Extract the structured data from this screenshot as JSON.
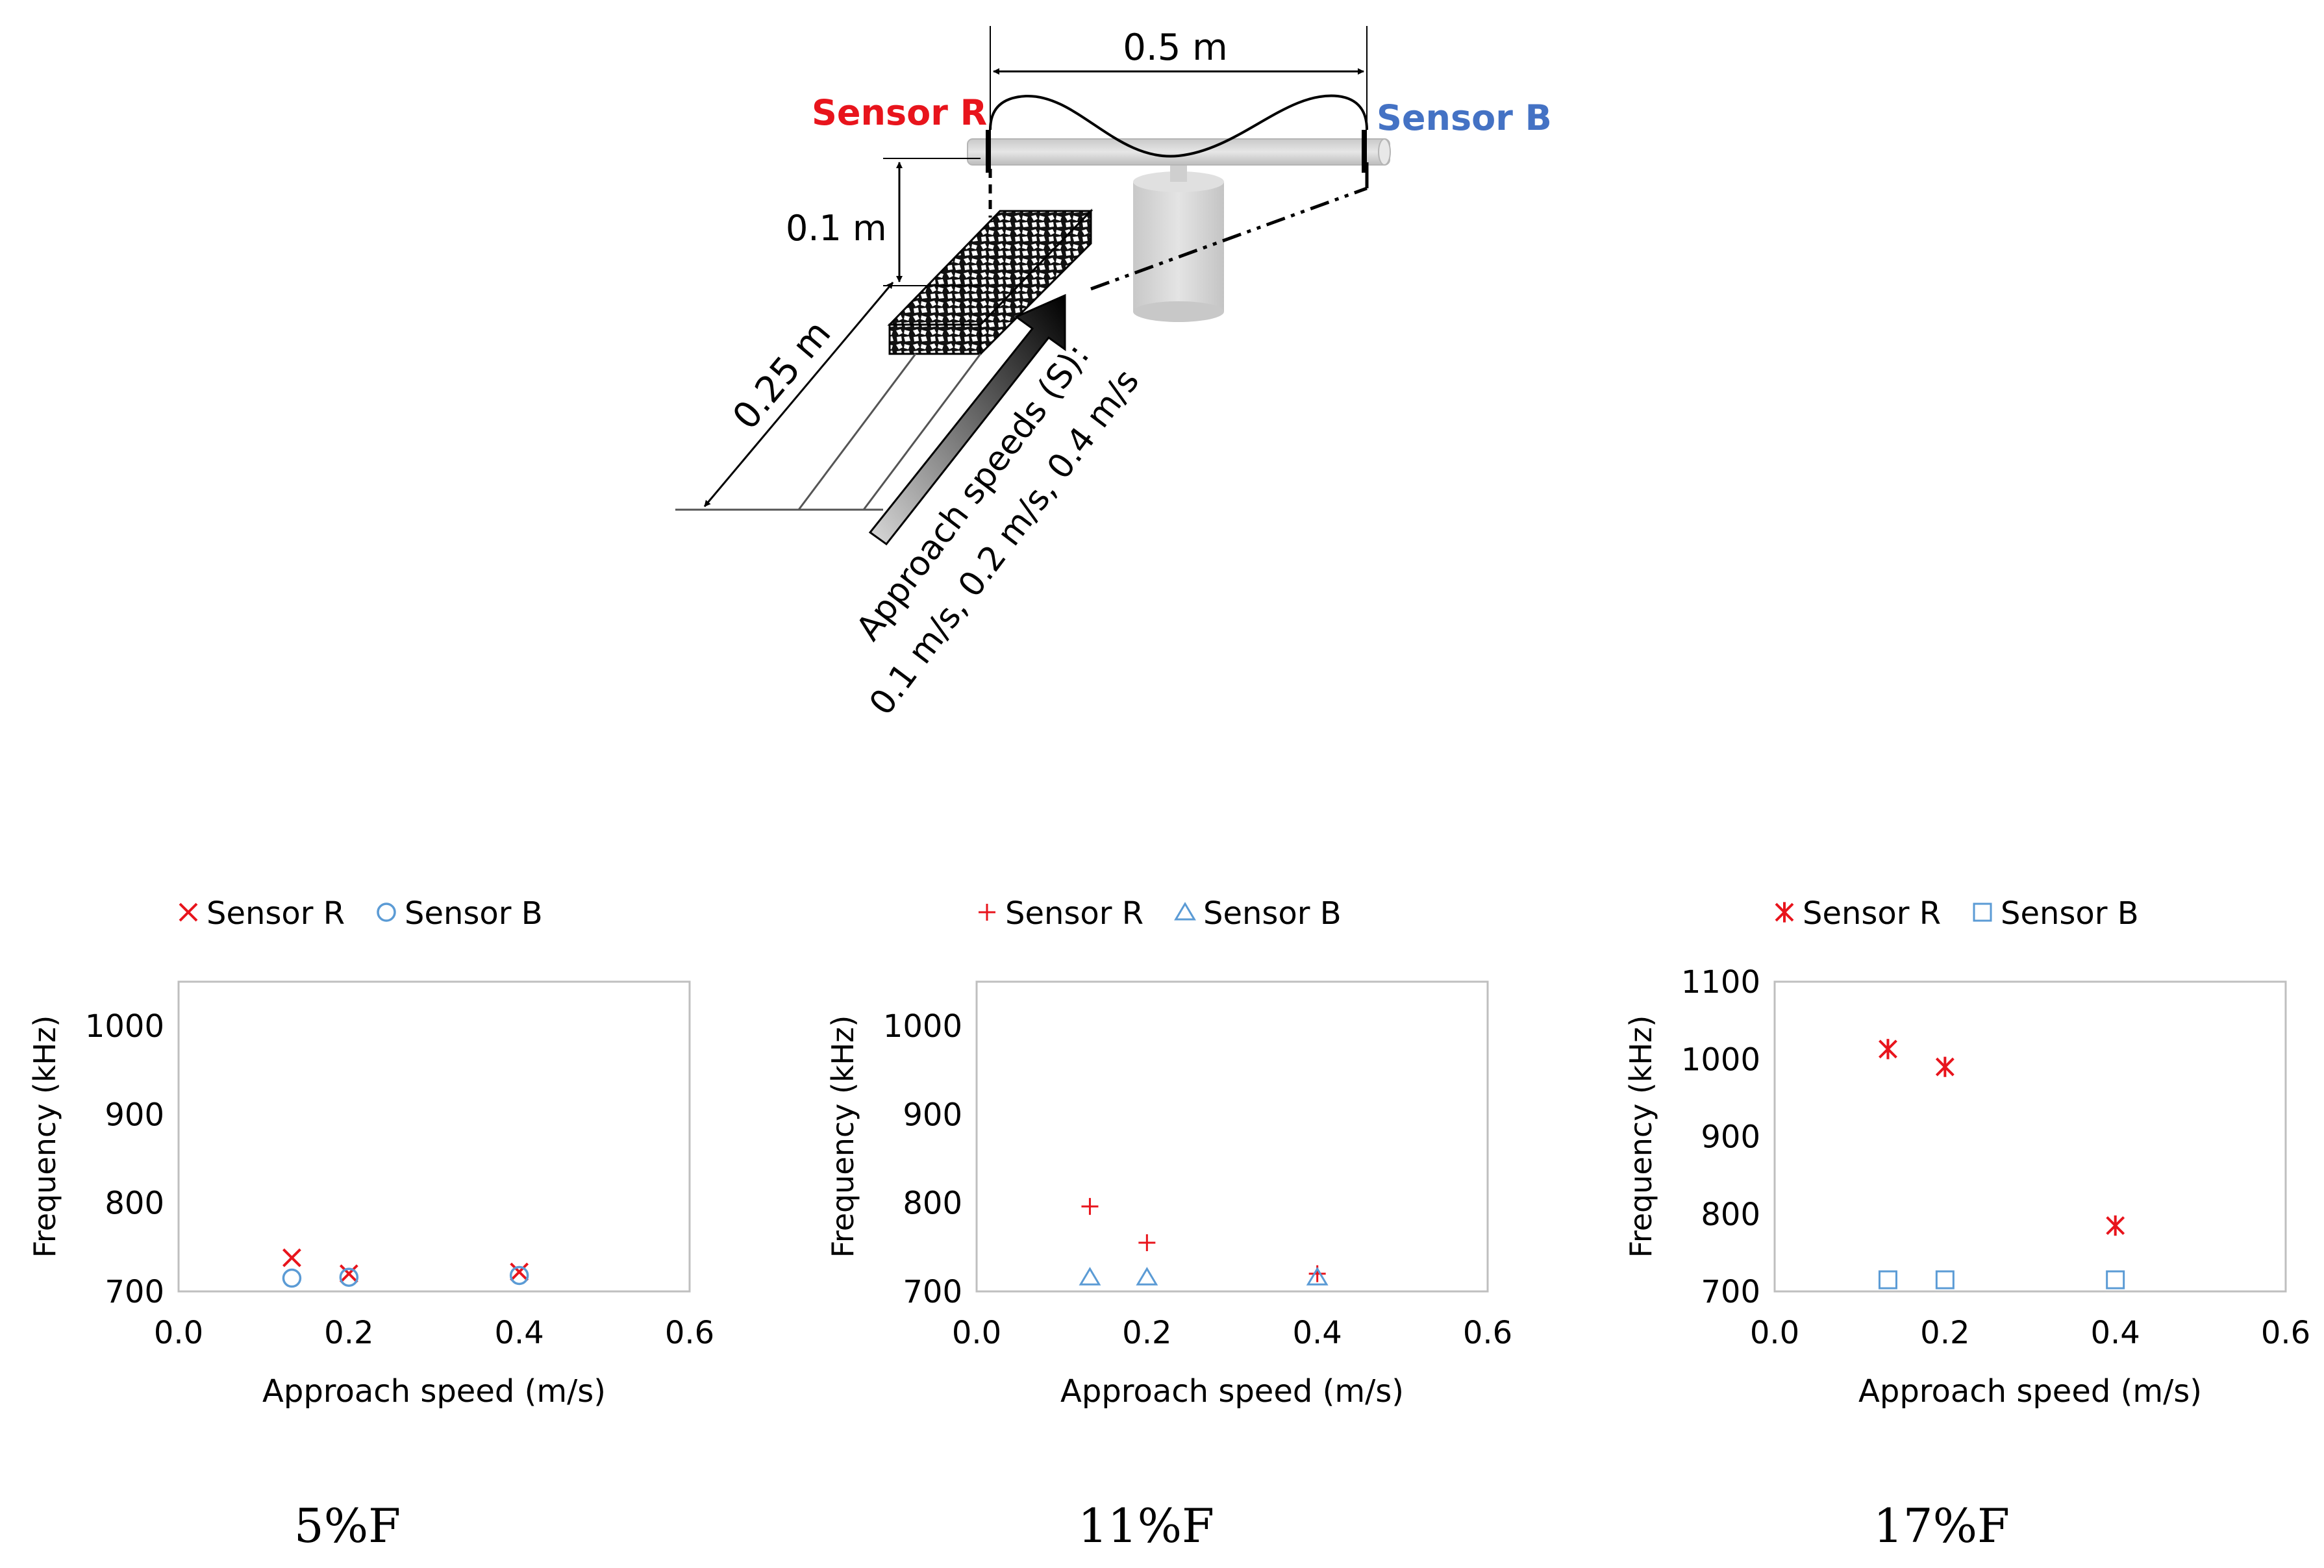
{
  "diagram": {
    "sensor_r_label": "Sensor R",
    "sensor_b_label": "Sensor B",
    "span_label": "0.5 m",
    "height_label": "0.1 m",
    "length_label": "0.25 m",
    "speeds_line1": "Approach speeds (S):",
    "speeds_line2": "0.1 m/s, 0.2 m/s, 0.4 m/s",
    "colors": {
      "sensor_r": "#e8141c",
      "sensor_b": "#4472c4",
      "cylinder": "#d9d9d9"
    }
  },
  "chart_data": [
    {
      "type": "scatter",
      "caption": "5%F",
      "xlabel": "Approach speed (m/s)",
      "ylabel": "Frequency (kHz)",
      "xlim": [
        0,
        0.6
      ],
      "ylim": [
        700,
        1050
      ],
      "xticks": [
        "0.0",
        "0.2",
        "0.4",
        "0.6"
      ],
      "yticks": [
        "700",
        "800",
        "900",
        "1000"
      ],
      "yticks_values": [
        700,
        800,
        900,
        1000
      ],
      "legend_position": "top",
      "series": [
        {
          "name": "Sensor R",
          "marker": "x",
          "color": "#e8141c",
          "x": [
            0.133,
            0.2,
            0.4
          ],
          "y": [
            738,
            720,
            722
          ]
        },
        {
          "name": "Sensor B",
          "marker": "circle",
          "color": "#5b9bd5",
          "x": [
            0.133,
            0.2,
            0.4
          ],
          "y": [
            715,
            716,
            718
          ]
        }
      ]
    },
    {
      "type": "scatter",
      "caption": "11%F",
      "xlabel": "Approach speed (m/s)",
      "ylabel": "Frequency (kHz)",
      "xlim": [
        0,
        0.6
      ],
      "ylim": [
        700,
        1050
      ],
      "xticks": [
        "0.0",
        "0.2",
        "0.4",
        "0.6"
      ],
      "yticks": [
        "700",
        "800",
        "900",
        "1000"
      ],
      "yticks_values": [
        700,
        800,
        900,
        1000
      ],
      "legend_position": "top",
      "series": [
        {
          "name": "Sensor R",
          "marker": "plus",
          "color": "#e8141c",
          "x": [
            0.133,
            0.2,
            0.4
          ],
          "y": [
            796,
            755,
            720
          ]
        },
        {
          "name": "Sensor B",
          "marker": "triangle",
          "color": "#5b9bd5",
          "x": [
            0.133,
            0.2,
            0.4
          ],
          "y": [
            716,
            716,
            716
          ]
        }
      ]
    },
    {
      "type": "scatter",
      "caption": "17%F",
      "xlabel": "Approach speed (m/s)",
      "ylabel": "Frequency (kHz)",
      "xlim": [
        0,
        0.6
      ],
      "ylim": [
        700,
        1100
      ],
      "xticks": [
        "0.0",
        "0.2",
        "0.4",
        "0.6"
      ],
      "yticks": [
        "700",
        "800",
        "900",
        "1000",
        "1100"
      ],
      "yticks_values": [
        700,
        800,
        900,
        1000,
        1100
      ],
      "legend_position": "top",
      "series": [
        {
          "name": "Sensor R",
          "marker": "asterisk",
          "color": "#e8141c",
          "x": [
            0.133,
            0.2,
            0.4
          ],
          "y": [
            1013,
            990,
            785
          ]
        },
        {
          "name": "Sensor B",
          "marker": "square",
          "color": "#5b9bd5",
          "x": [
            0.133,
            0.2,
            0.4
          ],
          "y": [
            715,
            715,
            715
          ]
        }
      ]
    }
  ]
}
